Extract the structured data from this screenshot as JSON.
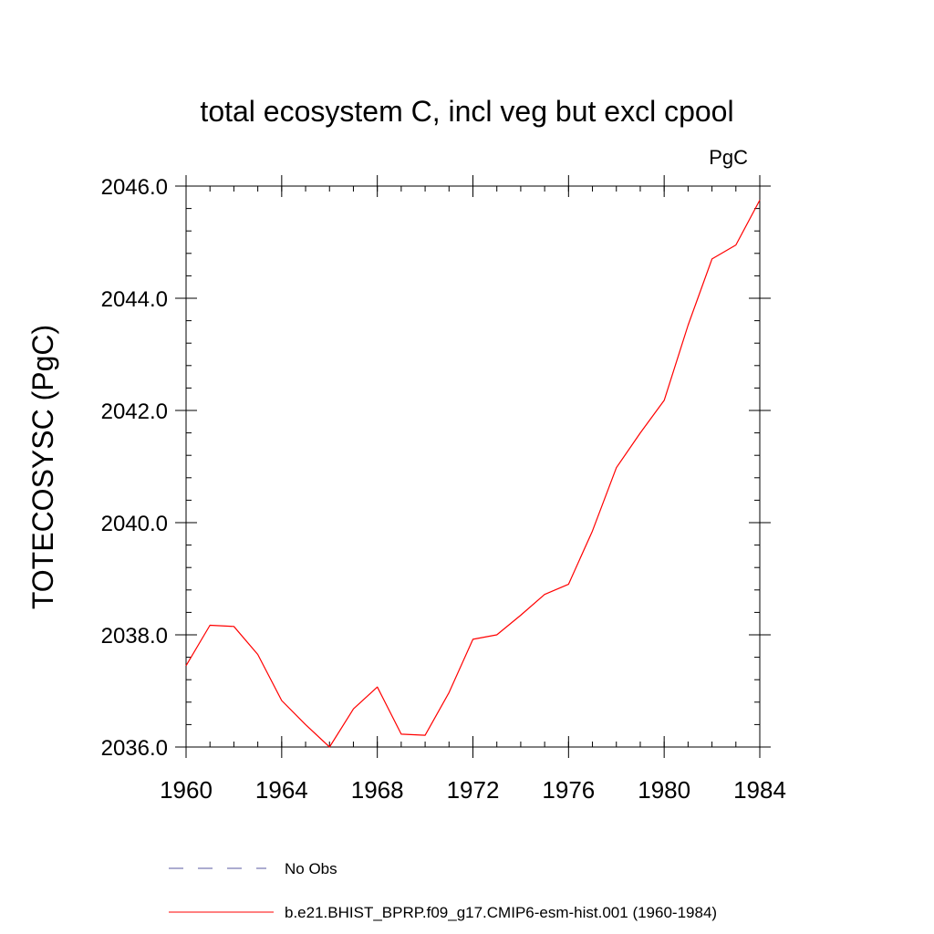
{
  "chart_data": {
    "type": "line",
    "title": "total ecosystem C, incl veg but excl cpool",
    "units_label": "PgC",
    "xlabel": "",
    "ylabel": "TOTECOSYSC  (PgC)",
    "xlim": [
      1960,
      1984
    ],
    "ylim": [
      2036.0,
      2046.0
    ],
    "x_ticks": [
      1960,
      1964,
      1968,
      1972,
      1976,
      1980,
      1984
    ],
    "y_ticks": [
      "2036.0",
      "2038.0",
      "2040.0",
      "2042.0",
      "2044.0",
      "2046.0"
    ],
    "grid": false,
    "legend_position": "bottom",
    "colors": {
      "model": "#ff0000",
      "obs": "#5a5aa0",
      "axis": "#000000"
    },
    "series": [
      {
        "name": "No Obs",
        "style": "dashed",
        "x": [],
        "values": []
      },
      {
        "name": "b.e21.BHIST_BPRP.f09_g17.CMIP6-esm-hist.001 (1960-1984)",
        "style": "solid",
        "x": [
          1960,
          1961,
          1962,
          1963,
          1964,
          1965,
          1966,
          1967,
          1968,
          1969,
          1970,
          1971,
          1972,
          1973,
          1974,
          1975,
          1976,
          1977,
          1978,
          1979,
          1980,
          1981,
          1982,
          1983,
          1984
        ],
        "values": [
          2037.45,
          2038.17,
          2038.15,
          2037.65,
          2036.83,
          2036.4,
          2036.0,
          2036.68,
          2037.07,
          2036.23,
          2036.21,
          2036.97,
          2037.92,
          2038.0,
          2038.35,
          2038.72,
          2038.9,
          2039.85,
          2040.98,
          2041.6,
          2042.18,
          2043.52,
          2044.7,
          2044.95,
          2045.75
        ]
      }
    ]
  }
}
